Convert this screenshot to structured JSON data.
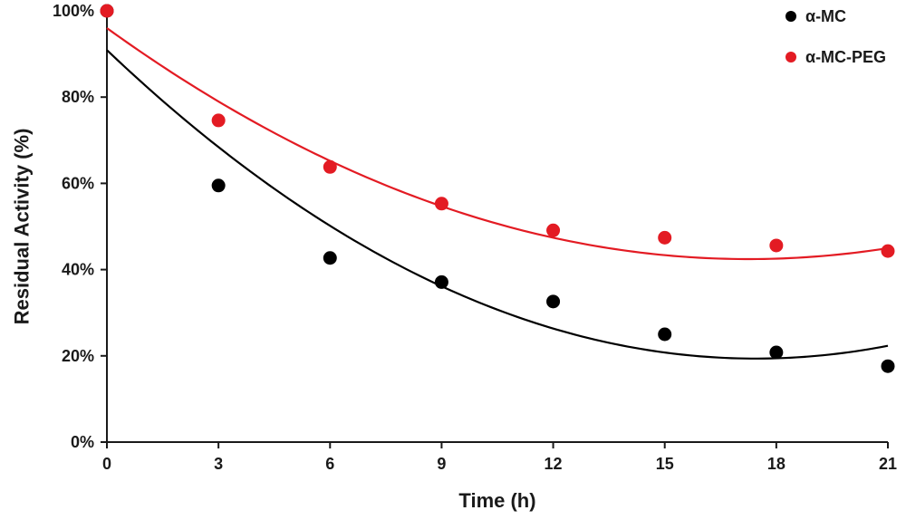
{
  "chart_data": {
    "type": "scatter",
    "title": "",
    "xlabel": "Time (h)",
    "ylabel": "Residual Activity (%)",
    "xlim": [
      0,
      21
    ],
    "ylim": [
      0,
      100
    ],
    "x_ticks": [
      0,
      3,
      6,
      9,
      12,
      15,
      18,
      21
    ],
    "x_tick_labels": [
      "0",
      "3",
      "6",
      "9",
      "12",
      "15",
      "18",
      "21"
    ],
    "y_ticks": [
      0,
      20,
      40,
      60,
      80,
      100
    ],
    "y_tick_labels": [
      "0%",
      "20%",
      "40%",
      "60%",
      "80%",
      "100%"
    ],
    "grid": false,
    "legend_position": "top-right",
    "series": [
      {
        "name": "α-MC",
        "color": "#000000",
        "x": [
          0,
          3,
          6,
          9,
          12,
          15,
          18,
          21
        ],
        "values": [
          100,
          59.5,
          42.7,
          37.1,
          32.6,
          25.0,
          20.8,
          17.6
        ],
        "trendline": {
          "type": "polynomial",
          "order": 2,
          "coefficients": [
            90.9,
            -8.2,
            0.235
          ]
        }
      },
      {
        "name": "α-MC-PEG",
        "color": "#e31b23",
        "x": [
          0,
          3,
          6,
          9,
          12,
          15,
          18,
          21
        ],
        "values": [
          100,
          74.6,
          63.8,
          55.3,
          49.1,
          47.4,
          45.6,
          44.3
        ],
        "trendline": {
          "type": "polynomial",
          "order": 2,
          "coefficients": [
            96.0,
            -6.21,
            0.18
          ]
        }
      }
    ]
  }
}
